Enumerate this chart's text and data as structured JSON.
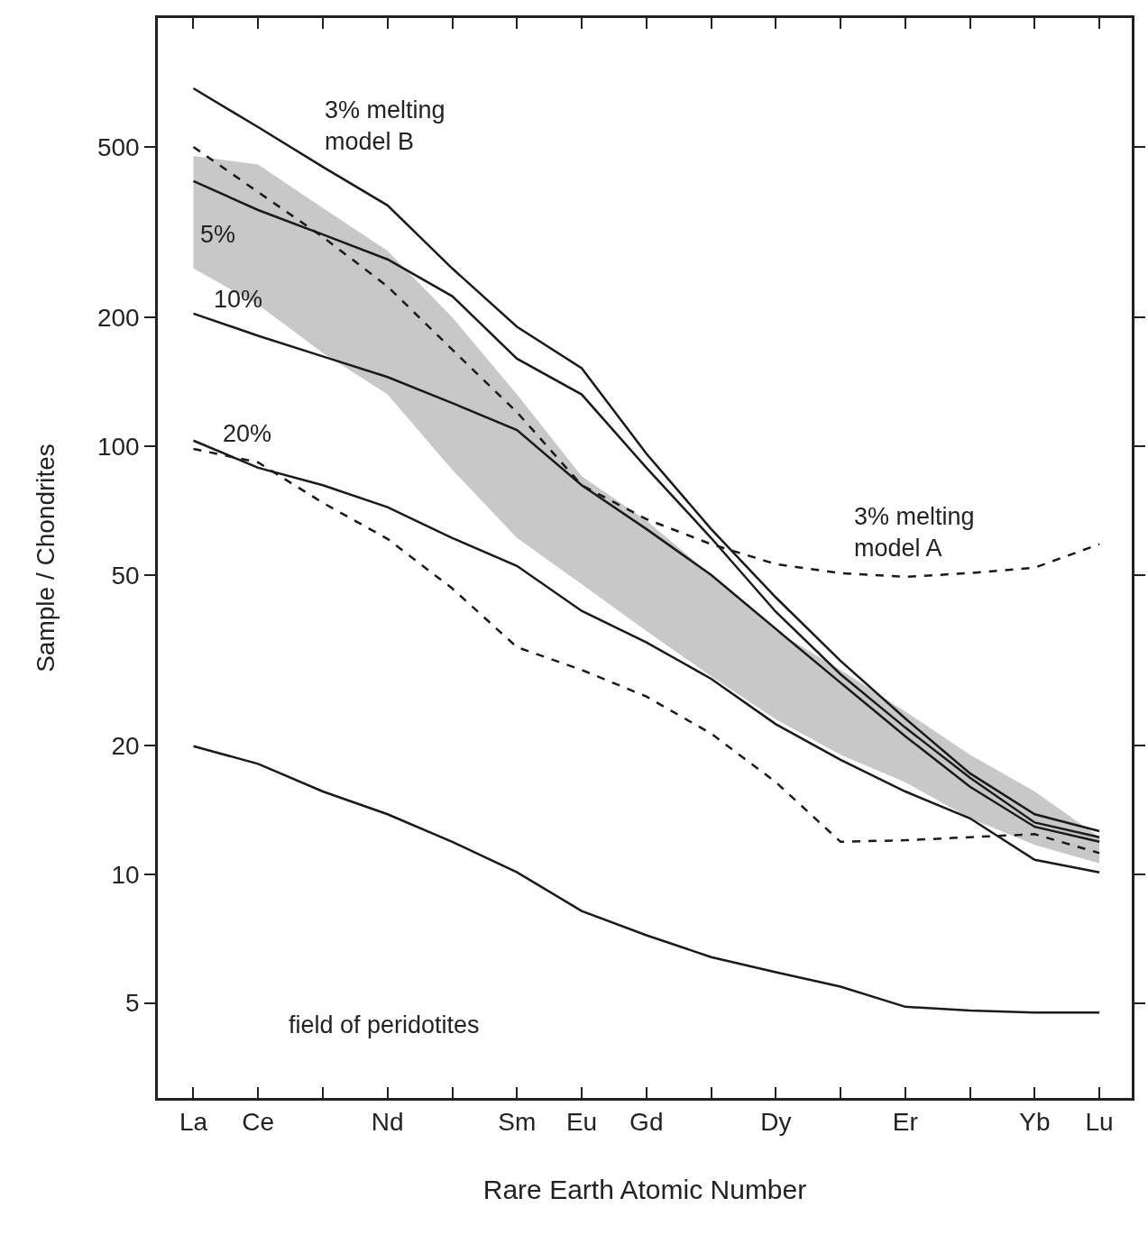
{
  "chart_data": {
    "type": "line",
    "xlabel": "Rare Earth Atomic Number",
    "ylabel": "Sample / Chondrites",
    "categories": [
      "La",
      "Ce",
      null,
      "Nd",
      null,
      "Sm",
      "Eu",
      "Gd",
      null,
      "Dy",
      null,
      "Er",
      null,
      "Yb",
      "Lu"
    ],
    "log": "y",
    "ylim": [
      3,
      1000
    ],
    "yticks": [
      5,
      10,
      20,
      50,
      100,
      200,
      500
    ],
    "grid": false,
    "marker": "none",
    "series": [
      {
        "type": "area",
        "color": "#c8c8c8",
        "values": [
          null,
          null,
          null,
          null,
          null,
          null,
          null,
          null,
          null,
          null,
          null,
          null,
          null,
          null,
          null
        ],
        "upper": [
          476,
          455,
          360,
          286,
          200,
          132,
          85,
          67,
          50,
          37,
          30,
          24,
          19,
          15.6,
          12.2
        ],
        "lower": [
          260,
          214,
          165,
          132,
          88,
          61,
          47.6,
          37,
          29,
          23,
          19,
          16.4,
          13.5,
          11.7,
          10.6
        ]
      },
      {
        "color": "#1a1a1a",
        "line_style": "solid",
        "values": [
          685,
          556,
          449,
          365,
          260,
          190,
          152,
          96,
          64,
          44.3,
          31.5,
          23.1,
          17.2,
          13.8,
          12.6
        ]
      },
      {
        "color": "#1a1a1a",
        "line_style": "solid",
        "values": [
          416,
          356,
          312,
          273,
          224,
          160,
          132,
          89,
          61,
          41,
          29.3,
          22,
          16.8,
          13.2,
          12.2
        ]
      },
      {
        "color": "#1a1a1a",
        "line_style": "solid",
        "values": [
          204,
          181,
          162,
          145,
          126,
          109,
          81,
          64,
          50,
          37.4,
          28,
          21,
          16,
          12.9,
          11.9
        ]
      },
      {
        "color": "#1a1a1a",
        "line_style": "solid",
        "values": [
          103,
          89,
          81,
          72,
          61,
          52.5,
          41.2,
          34.8,
          28.6,
          22.4,
          18.5,
          15.6,
          13.5,
          10.8,
          10.1
        ]
      },
      {
        "color": "#1a1a1a",
        "line_style": "dashed",
        "values": [
          500,
          392,
          308,
          236,
          168,
          120,
          81,
          67.5,
          59,
          53,
          50.5,
          49.5,
          50.5,
          52,
          59
        ]
      },
      {
        "color": "#1a1a1a",
        "line_style": "dashed",
        "values": [
          98.5,
          91.6,
          73.7,
          60.7,
          46.5,
          33.9,
          30,
          26,
          21.3,
          16.4,
          11.9,
          12,
          12.2,
          12.4,
          11.2
        ]
      },
      {
        "color": "#1a1a1a",
        "line_style": "solid",
        "values": [
          19.9,
          18.1,
          15.6,
          13.8,
          11.9,
          10.1,
          8.2,
          7.2,
          6.4,
          5.9,
          5.46,
          4.9,
          4.8,
          4.75,
          4.75
        ]
      }
    ],
    "annotations": [
      "3% melting\nmodel B",
      "5%",
      "10%",
      "20%",
      "3% melting\nmodel A",
      "field of peridotites"
    ]
  }
}
